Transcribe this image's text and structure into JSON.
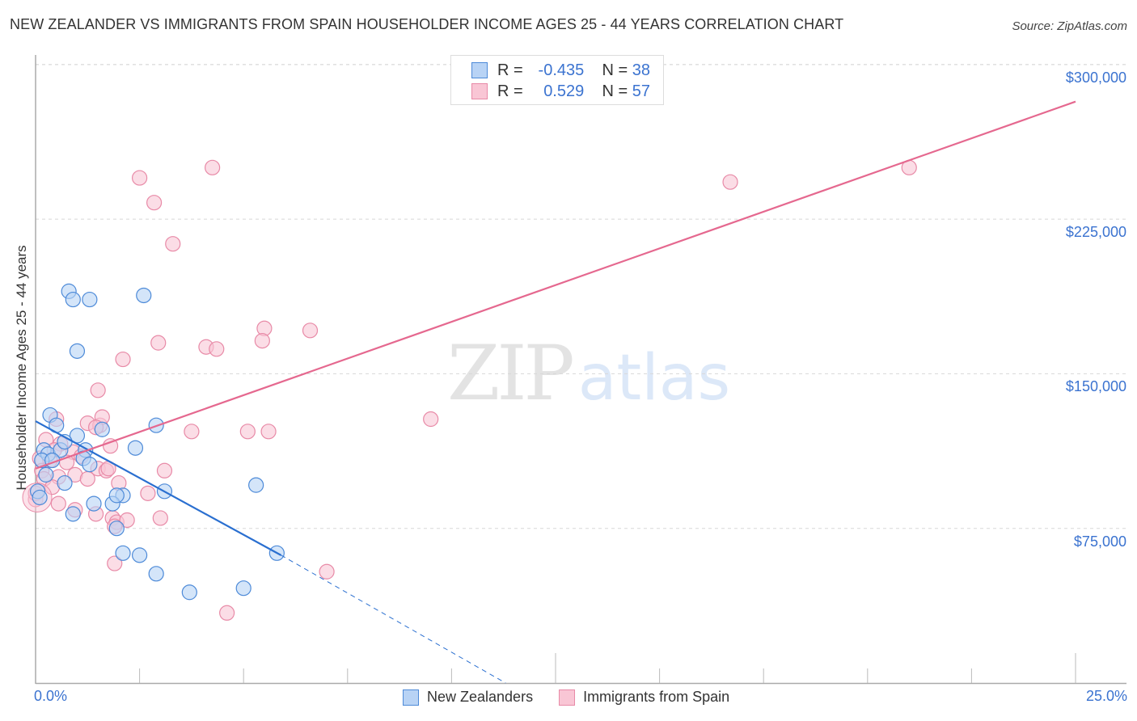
{
  "header": {
    "title": "NEW ZEALANDER VS IMMIGRANTS FROM SPAIN HOUSEHOLDER INCOME AGES 25 - 44 YEARS CORRELATION CHART",
    "source": "Source: ZipAtlas.com"
  },
  "axes": {
    "ylabel": "Householder Income Ages 25 - 44 years",
    "y_ticks": [
      "$300,000",
      "$225,000",
      "$150,000",
      "$75,000"
    ],
    "x_left": "0.0%",
    "x_right": "25.0%"
  },
  "legend": {
    "rows": [
      {
        "r_label": "R =",
        "r_value": "-0.435",
        "n_label": "N =",
        "n_value": "38"
      },
      {
        "r_label": "R =",
        "r_value": " 0.529",
        "n_label": "N =",
        "n_value": "57"
      }
    ],
    "bottom": [
      "New Zealanders",
      "Immigrants from Spain"
    ]
  },
  "watermark": {
    "zip": "ZIP",
    "atlas": "atlas"
  },
  "colors": {
    "blue_fill": "#b8d3f5",
    "blue_stroke": "#4d8ad8",
    "blue_line": "#2a6fd0",
    "pink_fill": "#f9c6d5",
    "pink_stroke": "#e88aa7",
    "pink_line": "#e5688f",
    "tick_text": "#3b73d0"
  },
  "chart_data": {
    "type": "scatter",
    "title": "NEW ZEALANDER VS IMMIGRANTS FROM SPAIN HOUSEHOLDER INCOME AGES 25 - 44 YEARS CORRELATION CHART",
    "xlabel": "",
    "ylabel": "Householder Income Ages 25 - 44 years",
    "xlim": [
      0,
      25
    ],
    "ylim": [
      0,
      310000
    ],
    "x_tick_labels": [
      "0.0%",
      "25.0%"
    ],
    "y_tick_values": [
      75000,
      150000,
      225000,
      300000
    ],
    "grid": true,
    "legend_position": "top-center + bottom",
    "series": [
      {
        "name": "New Zealanders",
        "color": "#4d8ad8",
        "r": -0.435,
        "n": 38,
        "trend": {
          "x0": 0,
          "y0": 127000,
          "x1": 5.9,
          "y1": 62000,
          "dashed_to_x": 11.3,
          "dashed_to_y": 0
        },
        "points": [
          [
            0.8,
            190000
          ],
          [
            0.9,
            186000
          ],
          [
            1.3,
            186000
          ],
          [
            2.6,
            188000
          ],
          [
            1.0,
            161000
          ],
          [
            0.35,
            130000
          ],
          [
            0.5,
            125000
          ],
          [
            1.0,
            120000
          ],
          [
            1.6,
            123000
          ],
          [
            2.9,
            125000
          ],
          [
            0.2,
            113000
          ],
          [
            0.3,
            111000
          ],
          [
            0.6,
            113000
          ],
          [
            0.7,
            117000
          ],
          [
            1.2,
            113000
          ],
          [
            2.4,
            114000
          ],
          [
            0.15,
            108000
          ],
          [
            0.4,
            108000
          ],
          [
            1.15,
            109000
          ],
          [
            1.3,
            106000
          ],
          [
            0.25,
            101000
          ],
          [
            0.7,
            97000
          ],
          [
            2.1,
            91000
          ],
          [
            3.1,
            93000
          ],
          [
            5.3,
            96000
          ],
          [
            0.05,
            93000
          ],
          [
            0.1,
            90000
          ],
          [
            1.4,
            87000
          ],
          [
            1.85,
            87000
          ],
          [
            1.95,
            91000
          ],
          [
            0.9,
            82000
          ],
          [
            1.95,
            75000
          ],
          [
            2.1,
            63000
          ],
          [
            2.5,
            62000
          ],
          [
            5.8,
            63000
          ],
          [
            2.9,
            53000
          ],
          [
            3.7,
            44000
          ],
          [
            5.0,
            46000
          ]
        ]
      },
      {
        "name": "Immigrants from Spain",
        "color": "#e88aa7",
        "r": 0.529,
        "n": 57,
        "trend": {
          "x0": 0,
          "y0": 104000,
          "x1": 25,
          "y1": 282000
        },
        "points": [
          [
            4.25,
            250000
          ],
          [
            2.5,
            245000
          ],
          [
            2.85,
            233000
          ],
          [
            3.3,
            213000
          ],
          [
            16.7,
            243000
          ],
          [
            21.0,
            250000
          ],
          [
            5.5,
            172000
          ],
          [
            6.6,
            171000
          ],
          [
            5.45,
            166000
          ],
          [
            2.95,
            165000
          ],
          [
            4.1,
            163000
          ],
          [
            4.35,
            162000
          ],
          [
            2.1,
            157000
          ],
          [
            1.5,
            142000
          ],
          [
            9.5,
            128000
          ],
          [
            3.75,
            122000
          ],
          [
            5.1,
            122000
          ],
          [
            5.6,
            122000
          ],
          [
            0.5,
            128000
          ],
          [
            1.25,
            126000
          ],
          [
            1.55,
            125000
          ],
          [
            1.6,
            129000
          ],
          [
            1.45,
            124000
          ],
          [
            0.25,
            118000
          ],
          [
            0.6,
            116000
          ],
          [
            0.45,
            113000
          ],
          [
            0.9,
            112000
          ],
          [
            1.8,
            115000
          ],
          [
            0.1,
            109000
          ],
          [
            0.35,
            108000
          ],
          [
            0.75,
            107000
          ],
          [
            1.1,
            110000
          ],
          [
            1.5,
            104000
          ],
          [
            0.15,
            103000
          ],
          [
            0.55,
            100000
          ],
          [
            0.95,
            101000
          ],
          [
            1.25,
            99000
          ],
          [
            1.7,
            103000
          ],
          [
            1.75,
            104000
          ],
          [
            3.1,
            103000
          ],
          [
            0.2,
            99000
          ],
          [
            0.4,
            95000
          ],
          [
            2.0,
            97000
          ],
          [
            2.7,
            92000
          ],
          [
            0.0,
            89000
          ],
          [
            0.55,
            87000
          ],
          [
            0.95,
            84000
          ],
          [
            1.45,
            82000
          ],
          [
            1.85,
            80000
          ],
          [
            1.95,
            78000
          ],
          [
            2.2,
            79000
          ],
          [
            3.0,
            80000
          ],
          [
            1.9,
            76000
          ],
          [
            1.9,
            58000
          ],
          [
            7.0,
            54000
          ],
          [
            4.6,
            34000
          ],
          [
            0.0,
            92000
          ]
        ]
      }
    ]
  }
}
